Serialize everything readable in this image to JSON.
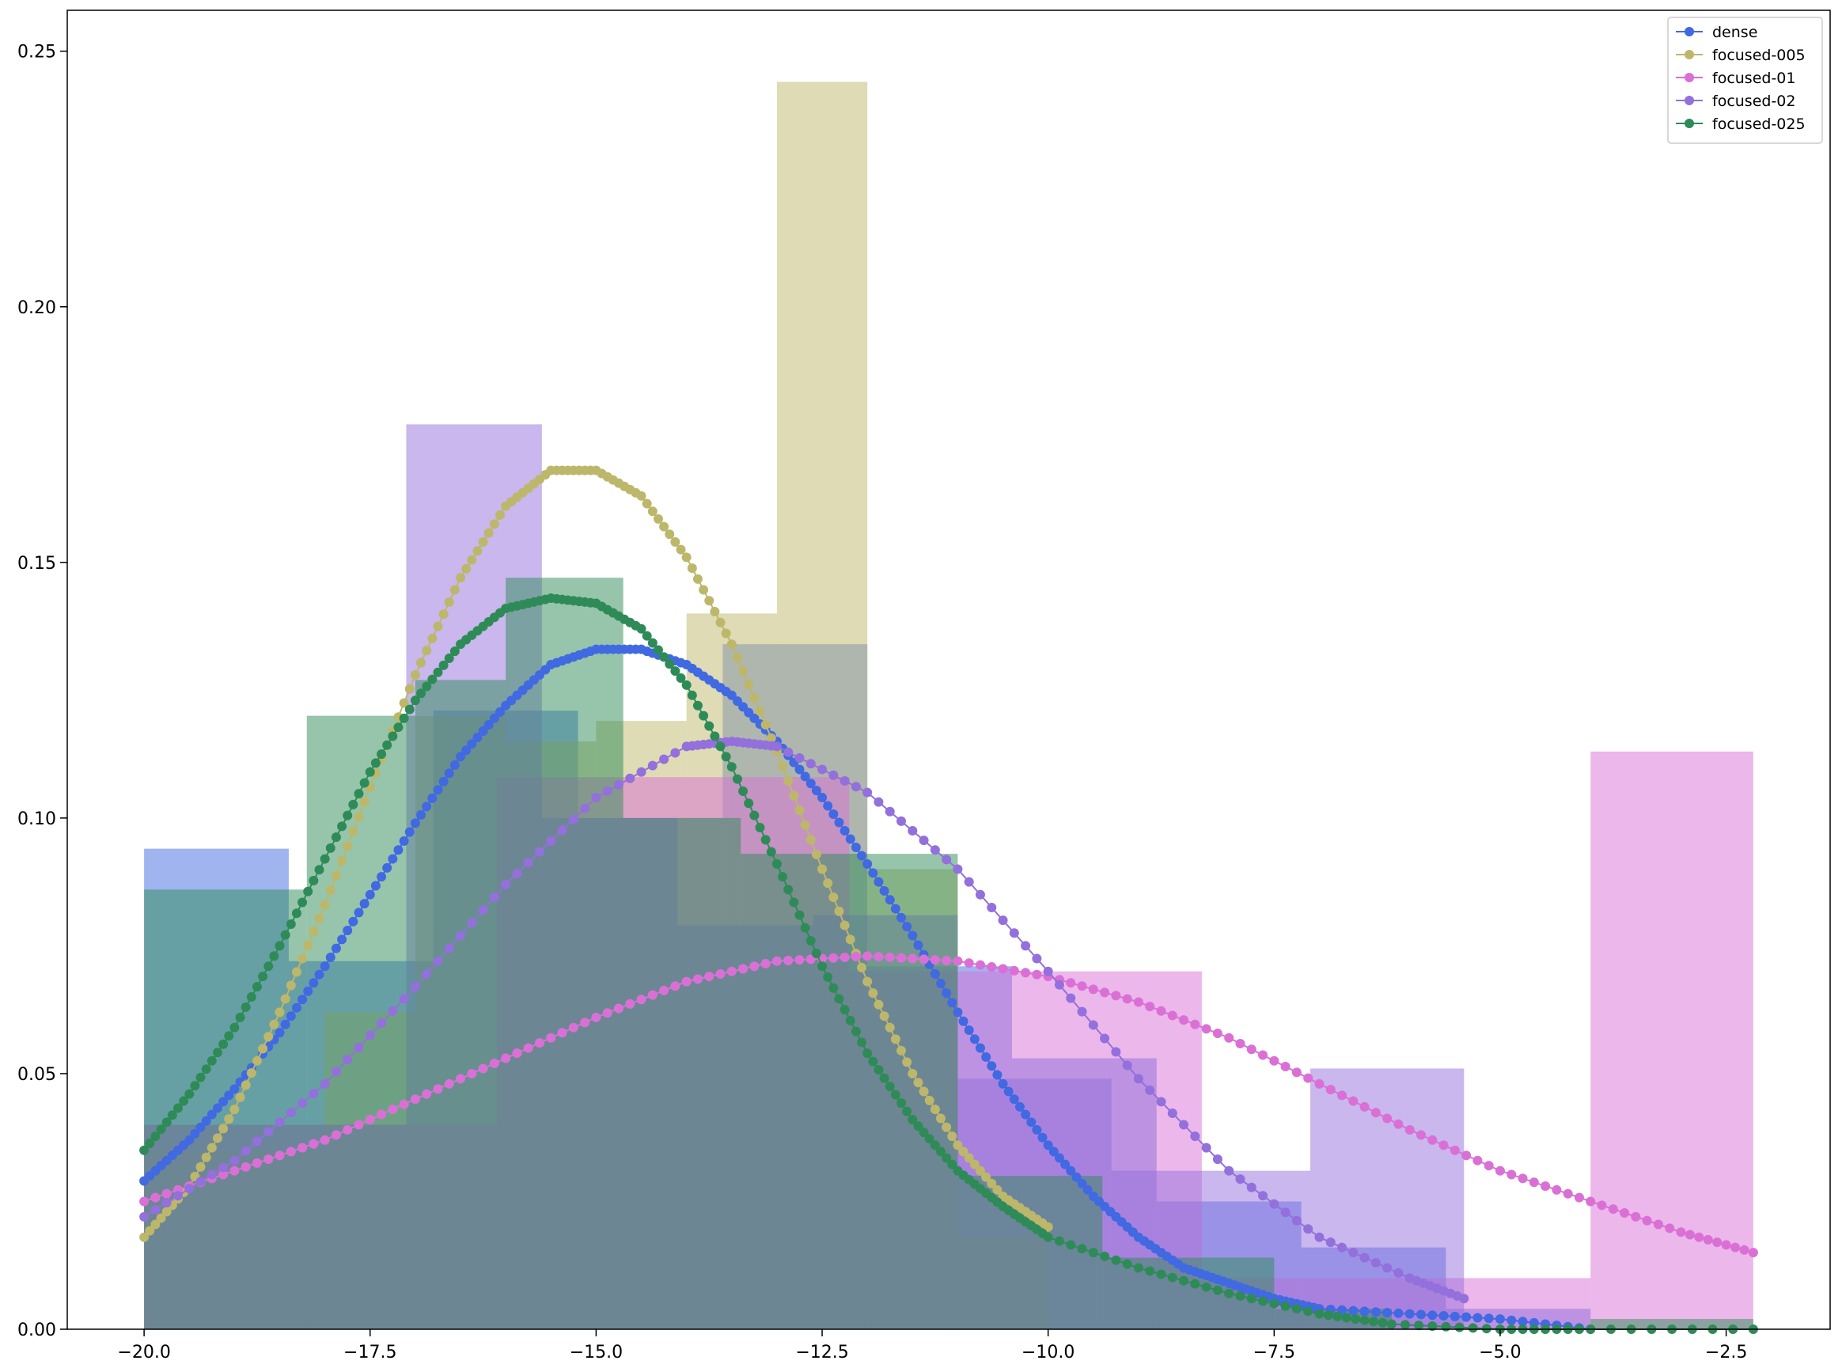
{
  "chart_data": {
    "type": "histogram-kde",
    "title": "",
    "xlabel": "",
    "ylabel": "",
    "xlim": [
      -20.85,
      -1.35
    ],
    "ylim": [
      0,
      0.258
    ],
    "xticks": [
      -20.0,
      -17.5,
      -15.0,
      -12.5,
      -10.0,
      -7.5,
      -5.0,
      -2.5
    ],
    "xtick_labels": [
      "−20.0",
      "−17.5",
      "−15.0",
      "−12.5",
      "−10.0",
      "−7.5",
      "−5.0",
      "−2.5"
    ],
    "yticks": [
      0,
      0.05,
      0.1,
      0.15,
      0.2,
      0.25
    ],
    "ytick_labels": [
      "0.00",
      "0.05",
      "0.10",
      "0.15",
      "0.20",
      "0.25"
    ],
    "grid": false,
    "legend_position": "top-right",
    "series": [
      {
        "name": "dense",
        "color": "#4169e1",
        "hist": {
          "edges": [
            -20.0,
            -18.4,
            -16.8,
            -15.2,
            -13.6,
            -12.0,
            -10.4,
            -8.8,
            -7.2,
            -5.6,
            -4.0
          ],
          "values": [
            0.094,
            0.072,
            0.121,
            0.1,
            0.134,
            0.071,
            0.053,
            0.025,
            0.016,
            0.004
          ]
        },
        "kde": {
          "x": [
            -20.0,
            -19.5,
            -19.0,
            -18.5,
            -18.0,
            -17.5,
            -17.0,
            -16.5,
            -16.0,
            -15.5,
            -15.0,
            -14.5,
            -14.0,
            -13.5,
            -13.0,
            -12.5,
            -12.0,
            -11.5,
            -11.0,
            -10.5,
            -10.0,
            -9.5,
            -9.0,
            -8.5,
            -8.0,
            -7.5,
            -7.0,
            -6.0,
            -5.0,
            -4.0
          ],
          "y": [
            0.029,
            0.037,
            0.047,
            0.058,
            0.071,
            0.085,
            0.099,
            0.112,
            0.122,
            0.13,
            0.133,
            0.133,
            0.13,
            0.124,
            0.115,
            0.104,
            0.091,
            0.077,
            0.062,
            0.048,
            0.036,
            0.026,
            0.018,
            0.012,
            0.009,
            0.006,
            0.004,
            0.003,
            0.002,
            0.0
          ]
        }
      },
      {
        "name": "focused-005",
        "color": "#bdb76b",
        "hist": {
          "edges": [
            -20.0,
            -18.0,
            -17.0,
            -16.0,
            -15.0,
            -14.0,
            -13.0,
            -12.0,
            -11.0,
            -10.0
          ],
          "values": [
            0.035,
            0.062,
            0.12,
            0.115,
            0.119,
            0.14,
            0.244,
            0.09,
            0.018
          ]
        },
        "kde": {
          "x": [
            -20.0,
            -19.5,
            -19.0,
            -18.5,
            -18.0,
            -17.5,
            -17.0,
            -16.5,
            -16.0,
            -15.5,
            -15.0,
            -14.5,
            -14.0,
            -13.5,
            -13.0,
            -12.5,
            -12.0,
            -11.5,
            -11.0,
            -10.5,
            -10.0
          ],
          "y": [
            0.018,
            0.028,
            0.043,
            0.062,
            0.083,
            0.106,
            0.128,
            0.147,
            0.161,
            0.168,
            0.168,
            0.163,
            0.151,
            0.134,
            0.113,
            0.09,
            0.068,
            0.05,
            0.036,
            0.026,
            0.02
          ]
        }
      },
      {
        "name": "focused-01",
        "color": "#da70d6",
        "hist": {
          "edges": [
            -20.0,
            -16.1,
            -12.2,
            -8.3,
            -4.0,
            -2.2
          ],
          "values": [
            0.04,
            0.108,
            0.07,
            0.01,
            0.113
          ]
        },
        "kde": {
          "x": [
            -20.0,
            -19.0,
            -18.0,
            -17.0,
            -16.0,
            -15.0,
            -14.0,
            -13.0,
            -12.0,
            -11.0,
            -10.0,
            -9.0,
            -8.0,
            -7.0,
            -6.0,
            -5.0,
            -4.0,
            -3.0,
            -2.2
          ],
          "y": [
            0.025,
            0.031,
            0.037,
            0.045,
            0.053,
            0.061,
            0.068,
            0.072,
            0.073,
            0.072,
            0.069,
            0.064,
            0.057,
            0.048,
            0.039,
            0.031,
            0.025,
            0.019,
            0.015
          ]
        }
      },
      {
        "name": "focused-02",
        "color": "#9370db",
        "hist": {
          "edges": [
            -20.0,
            -17.1,
            -15.6,
            -14.1,
            -12.6,
            -11.0,
            -9.3,
            -7.1,
            -5.4
          ],
          "values": [
            0.04,
            0.177,
            0.1,
            0.079,
            0.081,
            0.049,
            0.031,
            0.051
          ]
        },
        "kde": {
          "x": [
            -20.0,
            -19.0,
            -18.0,
            -17.0,
            -16.0,
            -15.0,
            -14.0,
            -13.5,
            -13.0,
            -12.0,
            -11.0,
            -10.0,
            -9.0,
            -8.0,
            -7.0,
            -6.0,
            -5.4
          ],
          "y": [
            0.022,
            0.033,
            0.048,
            0.067,
            0.087,
            0.104,
            0.114,
            0.115,
            0.114,
            0.105,
            0.09,
            0.07,
            0.049,
            0.031,
            0.018,
            0.01,
            0.006
          ]
        }
      },
      {
        "name": "focused-025",
        "color": "#2e8b57",
        "hist": {
          "edges": [
            -20.0,
            -18.2,
            -17.0,
            -16.0,
            -14.7,
            -13.4,
            -12.0,
            -11.0,
            -9.4,
            -7.5,
            -6.2,
            -4.0,
            -2.2
          ],
          "values": [
            0.086,
            0.12,
            0.127,
            0.147,
            0.1,
            0.093,
            0.093,
            0.03,
            0.014,
            0.004,
            0.0,
            0.002
          ]
        },
        "kde": {
          "x": [
            -20.0,
            -19.5,
            -19.0,
            -18.5,
            -18.0,
            -17.5,
            -17.0,
            -16.5,
            -16.0,
            -15.5,
            -15.0,
            -14.5,
            -14.0,
            -13.5,
            -13.0,
            -12.5,
            -12.0,
            -11.5,
            -11.0,
            -10.5,
            -10.0,
            -9.0,
            -8.0,
            -7.0,
            -6.2,
            -5.0,
            -4.0,
            -2.2
          ],
          "y": [
            0.035,
            0.046,
            0.059,
            0.075,
            0.092,
            0.109,
            0.123,
            0.134,
            0.141,
            0.143,
            0.142,
            0.137,
            0.126,
            0.11,
            0.091,
            0.071,
            0.054,
            0.041,
            0.031,
            0.024,
            0.018,
            0.012,
            0.007,
            0.003,
            0.001,
            0.0,
            0.0,
            0.0
          ]
        }
      }
    ]
  }
}
